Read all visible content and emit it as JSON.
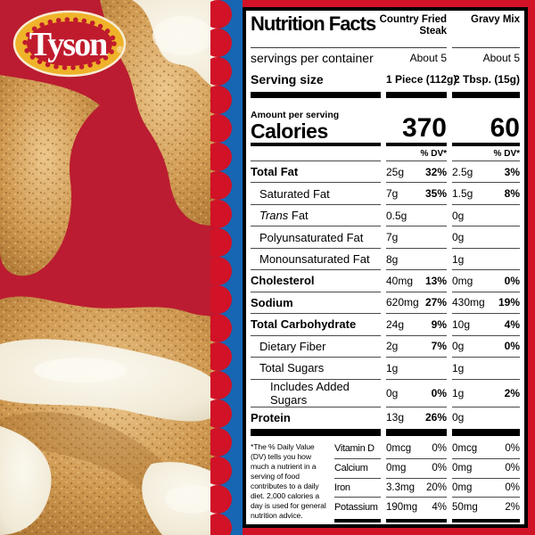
{
  "brand": {
    "name": "Tyson",
    "registered_mark": "®"
  },
  "panel": {
    "title": "Nutrition Facts",
    "servings_label": "servings per container",
    "serving_size_label": "Serving size",
    "amount_label": "Amount per serving",
    "calories_label": "Calories",
    "dv_header": "% DV*",
    "columns": [
      {
        "name": "Country Fried Steak",
        "servings": "About 5",
        "serving_size": "1 Piece (112g)",
        "calories": "370"
      },
      {
        "name": "Gravy Mix",
        "servings": "About 5",
        "serving_size": "2 Tbsp. (15g)",
        "calories": "60"
      }
    ],
    "rows": [
      {
        "label": "Total Fat",
        "bold": true,
        "indent": 0,
        "c1": "25g",
        "c1dv": "32%",
        "c2": "2.5g",
        "c2dv": "3%"
      },
      {
        "label": "Saturated Fat",
        "bold": false,
        "indent": 1,
        "c1": "7g",
        "c1dv": "35%",
        "c2": "1.5g",
        "c2dv": "8%"
      },
      {
        "label": "Trans Fat",
        "bold": false,
        "indent": 1,
        "italic_first_word": true,
        "c1": "0.5g",
        "c1dv": "",
        "c2": "0g",
        "c2dv": ""
      },
      {
        "label": "Polyunsaturated Fat",
        "bold": false,
        "indent": 1,
        "c1": "7g",
        "c1dv": "",
        "c2": "0g",
        "c2dv": ""
      },
      {
        "label": "Monounsaturated Fat",
        "bold": false,
        "indent": 1,
        "c1": "8g",
        "c1dv": "",
        "c2": "1g",
        "c2dv": ""
      },
      {
        "label": "Cholesterol",
        "bold": true,
        "indent": 0,
        "c1": "40mg",
        "c1dv": "13%",
        "c2": "0mg",
        "c2dv": "0%"
      },
      {
        "label": "Sodium",
        "bold": true,
        "indent": 0,
        "c1": "620mg",
        "c1dv": "27%",
        "c2": "430mg",
        "c2dv": "19%"
      },
      {
        "label": "Total Carbohydrate",
        "bold": true,
        "indent": 0,
        "c1": "24g",
        "c1dv": "9%",
        "c2": "10g",
        "c2dv": "4%"
      },
      {
        "label": "Dietary Fiber",
        "bold": false,
        "indent": 1,
        "c1": "2g",
        "c1dv": "7%",
        "c2": "0g",
        "c2dv": "0%"
      },
      {
        "label": "Total Sugars",
        "bold": false,
        "indent": 1,
        "c1": "1g",
        "c1dv": "",
        "c2": "1g",
        "c2dv": ""
      },
      {
        "label": "Includes Added Sugars",
        "bold": false,
        "indent": 2,
        "c1": "0g",
        "c1dv": "0%",
        "c2": "1g",
        "c2dv": "2%"
      },
      {
        "label": "Protein",
        "bold": true,
        "indent": 0,
        "c1": "13g",
        "c1dv": "26%",
        "c2": "0g",
        "c2dv": ""
      }
    ],
    "footnote": "*The % Daily Value (DV) tells you how much a nutrient in a serving of food contributes to a daily diet. 2,000 calories a day is used for general nutrition advice.",
    "minerals": [
      {
        "label": "Vitamin D",
        "c1": "0mcg",
        "c1dv": "0%",
        "c2": "0mcg",
        "c2dv": "0%"
      },
      {
        "label": "Calcium",
        "c1": "0mg",
        "c1dv": "0%",
        "c2": "0mg",
        "c2dv": "0%"
      },
      {
        "label": "Iron",
        "c1": "3.3mg",
        "c1dv": "20%",
        "c2": "0mg",
        "c2dv": "0%"
      },
      {
        "label": "Potassium",
        "c1": "190mg",
        "c1dv": "4%",
        "c2": "50mg",
        "c2dv": "2%"
      }
    ]
  },
  "colors": {
    "red-left": "#bb1c31",
    "red-margin": "#d11227",
    "blue": "#1766b3",
    "scallop": "#d11227",
    "gold": "#efb32a",
    "logo-red": "#c01b2d",
    "cream": "#f7ecd2"
  }
}
